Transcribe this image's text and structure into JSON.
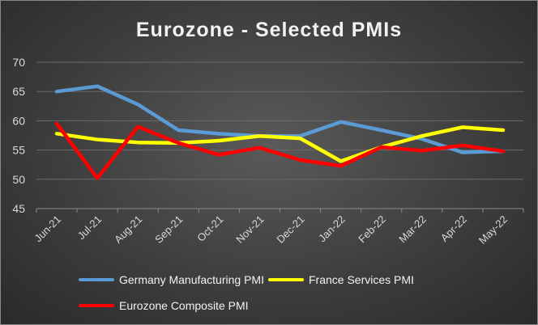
{
  "chart_data": {
    "type": "line",
    "title": "Eurozone - Selected PMIs",
    "xlabel": "",
    "ylabel": "",
    "ylim": [
      45,
      70
    ],
    "yticks": [
      45,
      50,
      55,
      60,
      65,
      70
    ],
    "grid": true,
    "legend_position": "bottom",
    "categories": [
      "Jun-21",
      "Jul-21",
      "Aug-21",
      "Sep-21",
      "Oct-21",
      "Nov-21",
      "Dec-21",
      "Jan-22",
      "Feb-22",
      "Mar-22",
      "Apr-22",
      "May-22"
    ],
    "series": [
      {
        "name": "Germany Manufacturing PMI",
        "color": "#5b9bd5",
        "values": [
          65.0,
          65.9,
          62.8,
          58.4,
          57.8,
          57.4,
          57.4,
          59.8,
          58.4,
          56.9,
          54.6,
          54.8
        ]
      },
      {
        "name": "France Services PMI",
        "color": "#ffff00",
        "values": [
          57.8,
          56.8,
          56.3,
          56.2,
          56.6,
          57.4,
          57.0,
          53.1,
          55.5,
          57.4,
          58.9,
          58.4
        ]
      },
      {
        "name": "Eurozone Composite PMI",
        "color": "#ff0000",
        "values": [
          59.5,
          50.2,
          59.0,
          56.2,
          54.2,
          55.4,
          53.3,
          52.3,
          55.5,
          54.9,
          55.8,
          54.8
        ]
      }
    ]
  }
}
